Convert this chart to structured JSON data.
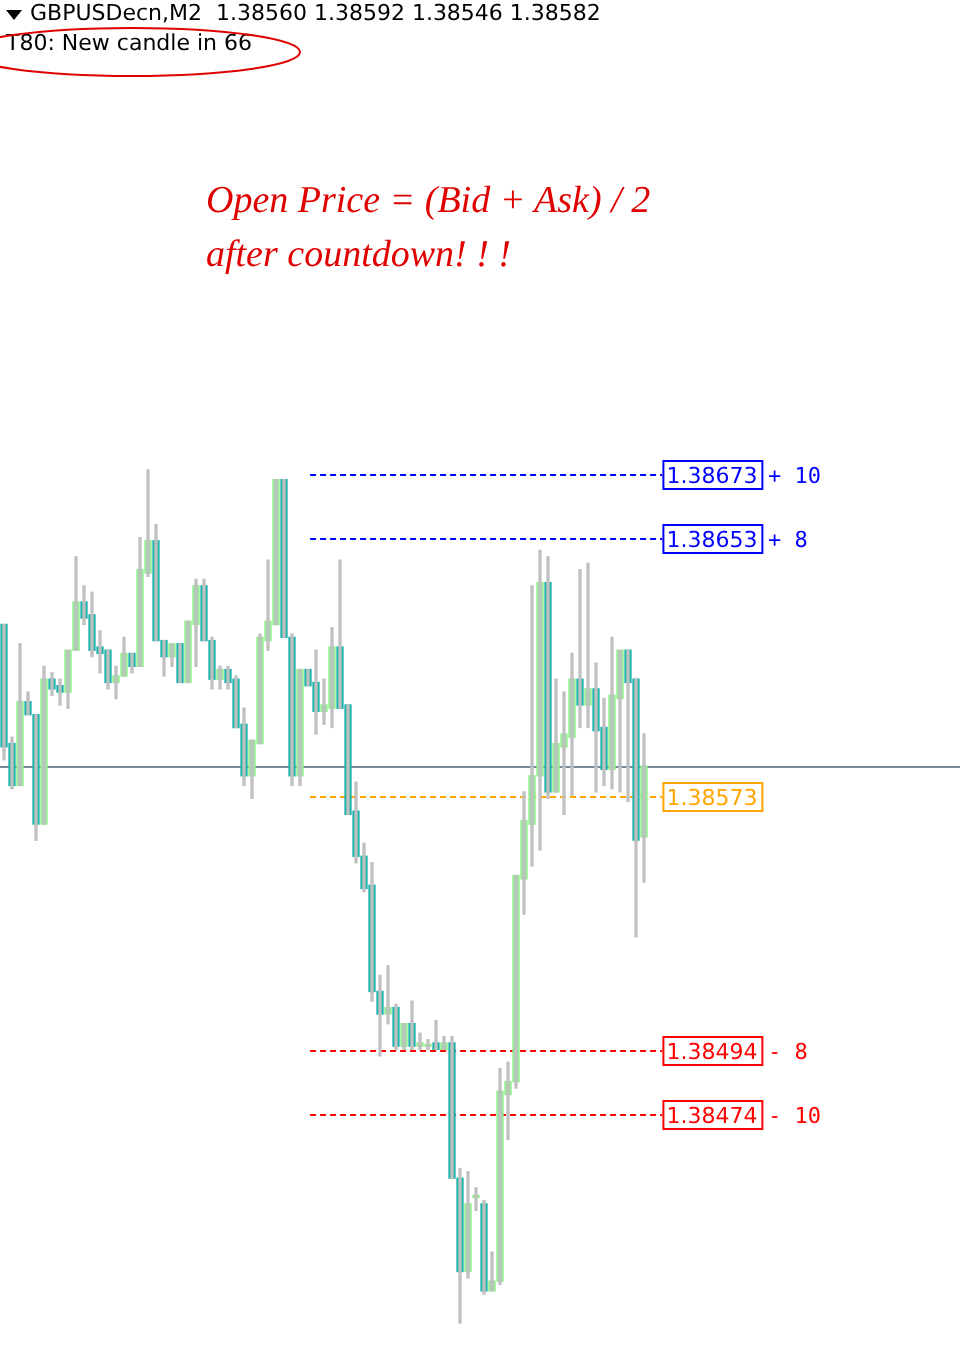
{
  "chart_data": {
    "type": "candlestick",
    "title": "GBPUSDecn,M2  1.38560 1.38592 1.38546 1.38582",
    "subtitle": "T80: New candle in 66",
    "categories": [
      null,
      null,
      null,
      null,
      null,
      null,
      null,
      null,
      null,
      null,
      null,
      null,
      null,
      null,
      null,
      null,
      null,
      null,
      null,
      null,
      null,
      null,
      null,
      null,
      null,
      null,
      null,
      null,
      null,
      null,
      null,
      null,
      null,
      null,
      null,
      null,
      null,
      null,
      null,
      null,
      null,
      null,
      null,
      null,
      null,
      null,
      null,
      null,
      null,
      null,
      null,
      null,
      null,
      null,
      null,
      null,
      null,
      null,
      null,
      null,
      null,
      null,
      null,
      null,
      null,
      null,
      null,
      null,
      null,
      null,
      null,
      null,
      null,
      null,
      null,
      null,
      null,
      null,
      null,
      null,
      null
    ],
    "ohlc": [
      [
        1.38626,
        1.38626,
        1.38584,
        1.38588
      ],
      [
        1.38589,
        1.38591,
        1.38575,
        1.38576
      ],
      [
        1.38576,
        1.3862,
        1.38576,
        1.38602
      ],
      [
        1.38602,
        1.38605,
        1.38598,
        1.38598
      ],
      [
        1.38598,
        1.38598,
        1.38559,
        1.38564
      ],
      [
        1.38564,
        1.38613,
        1.38564,
        1.38609
      ],
      [
        1.38609,
        1.38611,
        1.38604,
        1.38606
      ],
      [
        1.38607,
        1.38609,
        1.38601,
        1.38605
      ],
      [
        1.38605,
        1.38618,
        1.386,
        1.38618
      ],
      [
        1.38618,
        1.38647,
        1.38618,
        1.38633
      ],
      [
        1.38633,
        1.38638,
        1.38626,
        1.38628
      ],
      [
        1.38629,
        1.38636,
        1.38616,
        1.38618
      ],
      [
        1.38619,
        1.38624,
        1.38611,
        1.38617
      ],
      [
        1.38618,
        1.38618,
        1.38606,
        1.38608
      ],
      [
        1.38608,
        1.38613,
        1.38603,
        1.3861
      ],
      [
        1.3861,
        1.38622,
        1.3861,
        1.38617
      ],
      [
        1.38617,
        1.38617,
        1.38611,
        1.38613
      ],
      [
        1.38613,
        1.38653,
        1.38613,
        1.38643
      ],
      [
        1.38642,
        1.38674,
        1.38641,
        1.38652
      ],
      [
        1.38652,
        1.38657,
        1.38621,
        1.38621
      ],
      [
        1.38621,
        1.38621,
        1.3861,
        1.38616
      ],
      [
        1.38616,
        1.3862,
        1.38613,
        1.3862
      ],
      [
        1.3862,
        1.3862,
        1.38608,
        1.38608
      ],
      [
        1.38608,
        1.38627,
        1.38608,
        1.38627
      ],
      [
        1.38626,
        1.3864,
        1.38613,
        1.38638
      ],
      [
        1.38638,
        1.3864,
        1.38621,
        1.38621
      ],
      [
        1.38621,
        1.38622,
        1.38606,
        1.38609
      ],
      [
        1.38609,
        1.38613,
        1.38606,
        1.38612
      ],
      [
        1.38612,
        1.38613,
        1.38606,
        1.38608
      ],
      [
        1.38609,
        1.3861,
        1.38594,
        1.38594
      ],
      [
        1.38595,
        1.386,
        1.38576,
        1.38579
      ],
      [
        1.38579,
        1.3859,
        1.38572,
        1.3859
      ],
      [
        1.38589,
        1.38623,
        1.38589,
        1.38622
      ],
      [
        1.38621,
        1.38646,
        1.38618,
        1.38627
      ],
      [
        1.38626,
        1.38671,
        1.38626,
        1.38671
      ],
      [
        1.38671,
        1.38671,
        1.38622,
        1.38622
      ],
      [
        1.38622,
        1.38623,
        1.38576,
        1.38579
      ],
      [
        1.38579,
        1.38612,
        1.38576,
        1.38612
      ],
      [
        1.38612,
        1.38612,
        1.38607,
        1.38607
      ],
      [
        1.38608,
        1.38618,
        1.38592,
        1.38599
      ],
      [
        1.38599,
        1.38609,
        1.38595,
        1.38601
      ],
      [
        1.386,
        1.38625,
        1.38594,
        1.38619
      ],
      [
        1.38619,
        1.38646,
        1.386,
        1.386
      ],
      [
        1.38601,
        1.38601,
        1.38567,
        1.38567
      ],
      [
        1.38568,
        1.38577,
        1.38552,
        1.38554
      ],
      [
        1.38554,
        1.38558,
        1.38543,
        1.38544
      ],
      [
        1.38545,
        1.38552,
        1.38509,
        1.38512
      ],
      [
        1.38512,
        1.38517,
        1.38492,
        1.38505
      ],
      [
        1.38505,
        1.3852,
        1.38502,
        1.38507
      ],
      [
        1.38507,
        1.38508,
        1.38494,
        1.38495
      ],
      [
        1.38495,
        1.38502,
        1.38494,
        1.38502
      ],
      [
        1.38502,
        1.38509,
        1.38494,
        1.38495
      ],
      [
        1.38495,
        1.38499,
        1.38494,
        1.38496
      ],
      [
        1.38495,
        1.38497,
        1.38494,
        1.38495
      ],
      [
        1.38496,
        1.38503,
        1.38494,
        1.38494
      ],
      [
        1.38494,
        1.38498,
        1.38494,
        1.38496
      ],
      [
        1.38496,
        1.38498,
        1.38454,
        1.38454
      ],
      [
        1.38454,
        1.38457,
        1.38409,
        1.38425
      ],
      [
        1.38425,
        1.38456,
        1.38423,
        1.38446
      ],
      [
        1.38448,
        1.38451,
        1.38444,
        1.38448
      ],
      [
        1.38446,
        1.38447,
        1.38418,
        1.38419
      ],
      [
        1.38419,
        1.38431,
        1.38419,
        1.38422
      ],
      [
        1.38422,
        1.38488,
        1.38421,
        1.38481
      ],
      [
        1.3848,
        1.3849,
        1.38466,
        1.38484
      ],
      [
        1.38484,
        1.38548,
        1.38482,
        1.38548
      ],
      [
        1.38547,
        1.38574,
        1.38536,
        1.38565
      ],
      [
        1.38564,
        1.38638,
        1.38551,
        1.38579
      ],
      [
        1.38579,
        1.38649,
        1.38556,
        1.38639
      ],
      [
        1.38639,
        1.38647,
        1.38572,
        1.38574
      ],
      [
        1.38574,
        1.38609,
        1.38574,
        1.38589
      ],
      [
        1.38588,
        1.38605,
        1.38567,
        1.38592
      ],
      [
        1.38591,
        1.38617,
        1.38573,
        1.38609
      ],
      [
        1.38609,
        1.38643,
        1.38594,
        1.38601
      ],
      [
        1.38601,
        1.38645,
        1.38594,
        1.38606
      ],
      [
        1.38606,
        1.38614,
        1.38574,
        1.38593
      ],
      [
        1.38594,
        1.38603,
        1.38576,
        1.38581
      ],
      [
        1.38581,
        1.38622,
        1.38575,
        1.38604
      ],
      [
        1.38603,
        1.38618,
        1.38574,
        1.38618
      ],
      [
        1.38618,
        1.38618,
        1.38571,
        1.38608
      ],
      [
        1.38609,
        1.38609,
        1.38529,
        1.38559
      ],
      [
        1.3856,
        1.38592,
        1.38546,
        1.38582
      ]
    ],
    "colors": [
      "#20b2aa",
      "#20b2aa",
      "#90ee90",
      "#20b2aa",
      "#20b2aa",
      "#90ee90",
      "#20b2aa",
      "#20b2aa",
      "#90ee90",
      "#90ee90",
      "#20b2aa",
      "#20b2aa",
      "#20b2aa",
      "#20b2aa",
      "#90ee90",
      "#90ee90",
      "#20b2aa",
      "#90ee90",
      "#90ee90",
      "#20b2aa",
      "#20b2aa",
      "#90ee90",
      "#20b2aa",
      "#90ee90",
      "#90ee90",
      "#20b2aa",
      "#20b2aa",
      "#90ee90",
      "#20b2aa",
      "#20b2aa",
      "#20b2aa",
      "#90ee90",
      "#90ee90",
      "#90ee90",
      "#90ee90",
      "#20b2aa",
      "#20b2aa",
      "#90ee90",
      "#20b2aa",
      "#20b2aa",
      "#90ee90",
      "#90ee90",
      "#20b2aa",
      "#20b2aa",
      "#20b2aa",
      "#20b2aa",
      "#20b2aa",
      "#20b2aa",
      "#90ee90",
      "#20b2aa",
      "#90ee90",
      "#20b2aa",
      "#90ee90",
      "#90ee90",
      "#20b2aa",
      "#90ee90",
      "#20b2aa",
      "#20b2aa",
      "#90ee90",
      "#90ee90",
      "#20b2aa",
      "#90ee90",
      "#90ee90",
      "#90ee90",
      "#90ee90",
      "#90ee90",
      "#90ee90",
      "#90ee90",
      "#20b2aa",
      "#90ee90",
      "#90ee90",
      "#90ee90",
      "#20b2aa",
      "#90ee90",
      "#20b2aa",
      "#20b2aa",
      "#90ee90",
      "#90ee90",
      "#20b2aa",
      "#20b2aa",
      "#90ee90"
    ],
    "ylim": [
      1.384,
      1.3882
    ],
    "ref_lines": [
      {
        "axis": "y",
        "value": 1.38582,
        "color": "#778899",
        "line_style": "solid"
      },
      {
        "axis": "y",
        "value": 1.38673,
        "label": "1.38673 + 10",
        "color": "#0000ff",
        "line_style": "dashed"
      },
      {
        "axis": "y",
        "value": 1.38653,
        "label": "1.38653 + 8",
        "color": "#0000ff",
        "line_style": "dashed"
      },
      {
        "axis": "y",
        "value": 1.38573,
        "label": "1.38573",
        "color": "#ffa500",
        "line_style": "dashed"
      },
      {
        "axis": "y",
        "value": 1.38494,
        "label": "1.38494 - 8",
        "color": "#ff0000",
        "line_style": "dashed"
      },
      {
        "axis": "y",
        "value": 1.38474,
        "label": "1.38474 - 10",
        "color": "#ff0000",
        "line_style": "dashed"
      }
    ],
    "annotations": [
      "Open Price = (Bid + Ask) / 2",
      "after countdown! ! !"
    ],
    "tick_labels": false,
    "legend": false
  }
}
